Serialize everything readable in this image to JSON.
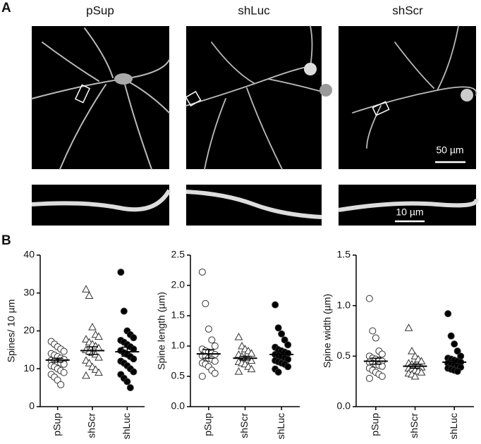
{
  "panel_a": {
    "label": "A",
    "images": [
      "pSup",
      "shLuc",
      "shScr"
    ],
    "scale_bars": [
      "50 µm",
      "10 µm"
    ]
  },
  "panel_b": {
    "label": "B"
  },
  "chart_data": [
    {
      "type": "strip",
      "ylabel": "Spines/ 10 µm",
      "categories": [
        "pSup",
        "shScr",
        "shLuc"
      ],
      "markers": [
        "open-circle",
        "open-triangle",
        "filled-circle"
      ],
      "ylim": [
        0,
        40
      ],
      "yticks": [
        0,
        10,
        20,
        30,
        40
      ],
      "points": [
        [
          17.2,
          16.5,
          15.8,
          15.2,
          14.6,
          14.0,
          13.6,
          13.2,
          12.8,
          12.5,
          12.2,
          12.0,
          11.8,
          11.5,
          11.2,
          10.8,
          10.5,
          10.0,
          9.5,
          9.0,
          8.5,
          7.8,
          7.0,
          5.8
        ],
        [
          31.0,
          29.3,
          21.0,
          19.0,
          18.5,
          17.8,
          17.0,
          16.5,
          16.0,
          15.5,
          15.0,
          14.6,
          14.2,
          13.8,
          13.0,
          12.2,
          11.5,
          10.5,
          9.8,
          9.0,
          8.2
        ],
        [
          35.5,
          25.2,
          20.0,
          19.0,
          18.2,
          17.5,
          17.0,
          16.4,
          15.8,
          15.2,
          14.8,
          14.2,
          13.8,
          13.2,
          12.6,
          12.0,
          11.5,
          10.8,
          10.0,
          9.2,
          8.5,
          7.5,
          6.6,
          5.0
        ]
      ],
      "means": [
        12.3,
        14.8,
        14.5
      ],
      "sems": [
        0.5,
        1.0,
        1.2
      ]
    },
    {
      "type": "strip",
      "ylabel": "Spine length (µm)",
      "categories": [
        "pSup",
        "shScr",
        "shLuc"
      ],
      "markers": [
        "open-circle",
        "open-triangle",
        "filled-circle"
      ],
      "ylim": [
        0,
        2.5
      ],
      "yticks": [
        {
          "value": 0,
          "label": "0.0"
        },
        0.5,
        {
          "value": 1,
          "label": "1.0"
        },
        1.5,
        {
          "value": 2,
          "label": "2.0"
        },
        2.5
      ],
      "points": [
        [
          2.22,
          1.7,
          1.28,
          1.1,
          1.0,
          0.95,
          0.92,
          0.9,
          0.88,
          0.86,
          0.84,
          0.82,
          0.8,
          0.78,
          0.75,
          0.72,
          0.7,
          0.66,
          0.6,
          0.55,
          0.5
        ],
        [
          1.15,
          1.0,
          0.95,
          0.92,
          0.88,
          0.86,
          0.83,
          0.8,
          0.78,
          0.76,
          0.74,
          0.72,
          0.7,
          0.66,
          0.62,
          0.58
        ],
        [
          1.68,
          1.3,
          1.2,
          1.1,
          1.02,
          0.98,
          0.94,
          0.92,
          0.9,
          0.88,
          0.86,
          0.84,
          0.82,
          0.8,
          0.78,
          0.76,
          0.74,
          0.72,
          0.7,
          0.66,
          0.62,
          0.57
        ]
      ],
      "means": [
        0.87,
        0.8,
        0.86
      ],
      "sems": [
        0.07,
        0.03,
        0.04
      ]
    },
    {
      "type": "strip",
      "ylabel": "Spine width (µm)",
      "categories": [
        "pSup",
        "shScr",
        "shLuc"
      ],
      "markers": [
        "open-circle",
        "open-triangle",
        "filled-circle"
      ],
      "ylim": [
        0,
        1.5
      ],
      "yticks": [
        {
          "value": 0,
          "label": "0.0"
        },
        0.5,
        {
          "value": 1,
          "label": "1.0"
        },
        1.5
      ],
      "points": [
        [
          1.07,
          0.75,
          0.68,
          0.55,
          0.52,
          0.5,
          0.48,
          0.47,
          0.46,
          0.45,
          0.44,
          0.43,
          0.42,
          0.41,
          0.4,
          0.38,
          0.36,
          0.34,
          0.32,
          0.3,
          0.28
        ],
        [
          0.78,
          0.55,
          0.5,
          0.47,
          0.45,
          0.43,
          0.42,
          0.41,
          0.4,
          0.39,
          0.38,
          0.37,
          0.36,
          0.35,
          0.34,
          0.33,
          0.32,
          0.3
        ],
        [
          0.92,
          0.7,
          0.62,
          0.55,
          0.5,
          0.48,
          0.47,
          0.46,
          0.45,
          0.44,
          0.43,
          0.42,
          0.41,
          0.4,
          0.39,
          0.38,
          0.37,
          0.36,
          0.35
        ]
      ],
      "means": [
        0.45,
        0.4,
        0.44
      ],
      "sems": [
        0.03,
        0.02,
        0.02
      ]
    }
  ]
}
